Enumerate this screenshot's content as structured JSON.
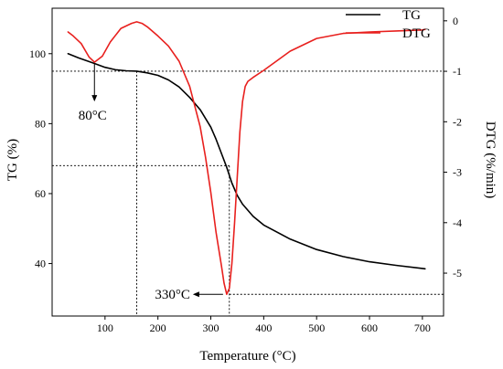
{
  "chart_data": {
    "type": "line",
    "xlabel": "Temperature (°C)",
    "ylabel_left": "TG (%)",
    "ylabel_right": "DTG (%/min)",
    "xlim": [
      0,
      740
    ],
    "ylim_left": [
      25,
      113
    ],
    "ylim_right": [
      -5.85,
      0.25
    ],
    "x_ticks": [
      100,
      200,
      300,
      400,
      500,
      600,
      700
    ],
    "y_left_ticks": [
      40,
      60,
      80,
      100
    ],
    "y_right_ticks": [
      0,
      -1,
      -2,
      -3,
      -4,
      -5
    ],
    "grid": false,
    "legend_position": "top-right",
    "series": [
      {
        "name": "TG",
        "axis": "left",
        "color": "#000000",
        "x": [
          30,
          50,
          80,
          100,
          120,
          140,
          160,
          180,
          200,
          220,
          240,
          260,
          280,
          300,
          310,
          320,
          330,
          340,
          350,
          360,
          380,
          400,
          450,
          500,
          550,
          600,
          650,
          700,
          705
        ],
        "y": [
          100,
          98.8,
          97.2,
          96.1,
          95.4,
          95.1,
          95.0,
          94.5,
          93.8,
          92.5,
          90.5,
          87.5,
          84.0,
          79.0,
          75.5,
          71.5,
          67.5,
          63.0,
          59.5,
          57.0,
          53.5,
          51.0,
          47.0,
          44.0,
          42.0,
          40.5,
          39.5,
          38.6,
          38.5
        ]
      },
      {
        "name": "DTG",
        "axis": "right",
        "color": "#e8201e",
        "x": [
          30,
          40,
          55,
          70,
          80,
          95,
          110,
          130,
          150,
          160,
          170,
          180,
          200,
          220,
          240,
          260,
          280,
          290,
          300,
          310,
          320,
          325,
          330,
          335,
          340,
          345,
          350,
          355,
          360,
          365,
          370,
          380,
          400,
          450,
          500,
          550,
          600,
          650,
          700,
          705
        ],
        "y": [
          -0.22,
          -0.3,
          -0.45,
          -0.72,
          -0.82,
          -0.7,
          -0.42,
          -0.15,
          -0.05,
          -0.02,
          -0.05,
          -0.12,
          -0.3,
          -0.5,
          -0.8,
          -1.3,
          -2.1,
          -2.7,
          -3.4,
          -4.2,
          -4.85,
          -5.2,
          -5.42,
          -5.3,
          -4.8,
          -4.0,
          -3.1,
          -2.2,
          -1.6,
          -1.3,
          -1.2,
          -1.12,
          -0.98,
          -0.6,
          -0.35,
          -0.25,
          -0.22,
          -0.2,
          -0.18,
          -0.17
        ]
      }
    ],
    "annotations": [
      {
        "text": "80°C",
        "x": 80,
        "axis": "right",
        "y": -0.82
      },
      {
        "text": "330°C",
        "x": 330,
        "axis": "right",
        "y": -5.42
      }
    ],
    "reference_lines": {
      "tg_horizontal_levels": [
        95,
        68
      ],
      "dtg_horizontal_levels": [
        -5.42
      ],
      "vertical_temperatures": [
        160,
        335
      ]
    }
  }
}
